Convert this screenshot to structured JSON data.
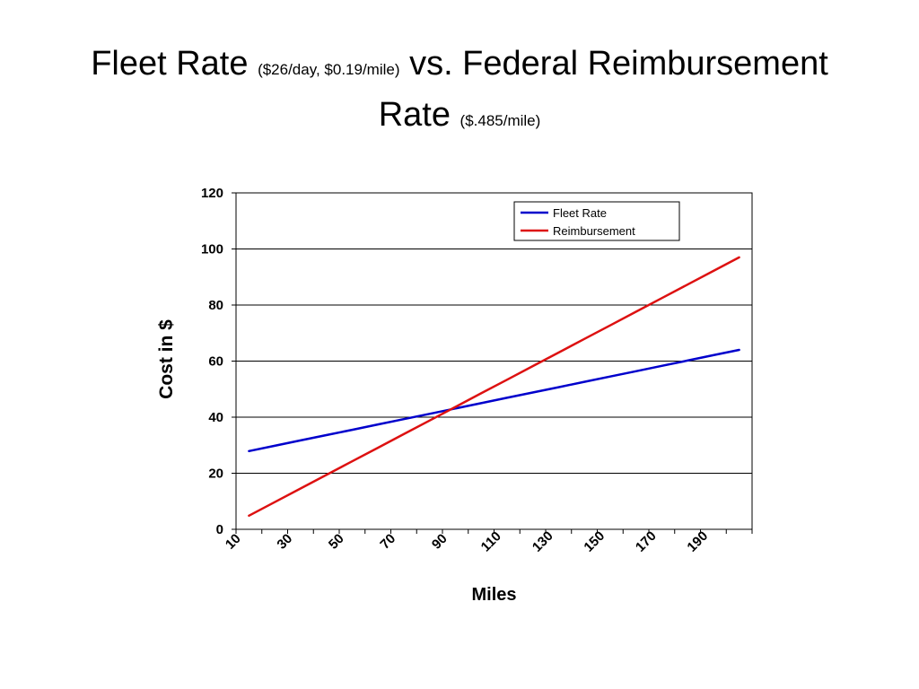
{
  "title": {
    "part1": "Fleet Rate",
    "part2": "($26/day, $0.19/mile)",
    "part3": "vs. Federal Reimbursement",
    "part4": "Rate",
    "part5": "($.485/mile)"
  },
  "chart_data": {
    "type": "line",
    "xlabel": "Miles",
    "ylabel": "Cost in $",
    "ylim": [
      0,
      120
    ],
    "y_ticks": [
      0,
      20,
      40,
      60,
      80,
      100,
      120
    ],
    "x_tick_labels": [
      "10",
      "30",
      "50",
      "70",
      "90",
      "110",
      "130",
      "150",
      "170",
      "190"
    ],
    "grid": true,
    "legend_position": "top-right",
    "x": [
      10,
      20,
      30,
      40,
      50,
      60,
      70,
      80,
      90,
      100,
      110,
      120,
      130,
      140,
      150,
      160,
      170,
      180,
      190,
      200
    ],
    "series": [
      {
        "name": "Fleet Rate",
        "color": "#0000cc",
        "values": [
          27.9,
          29.8,
          31.7,
          33.6,
          35.5,
          37.4,
          39.3,
          41.2,
          43.1,
          45.0,
          46.9,
          48.8,
          50.7,
          52.6,
          54.5,
          56.4,
          58.3,
          60.2,
          62.1,
          64.0
        ]
      },
      {
        "name": "Reimbursement",
        "color": "#dd1111",
        "values": [
          4.85,
          9.7,
          14.55,
          19.4,
          24.25,
          29.1,
          33.95,
          38.8,
          43.65,
          48.5,
          53.35,
          58.2,
          63.05,
          67.9,
          72.75,
          77.6,
          82.45,
          87.3,
          92.15,
          97.0
        ]
      }
    ]
  }
}
